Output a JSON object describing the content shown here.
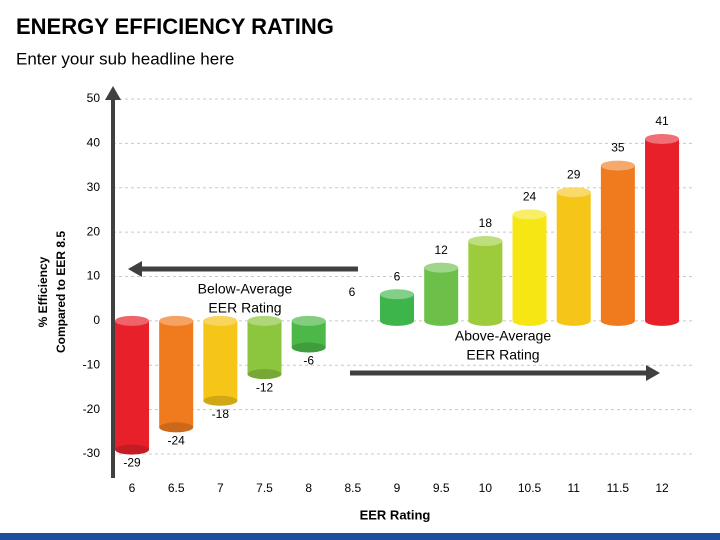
{
  "chart_data": {
    "type": "bar",
    "title": "ENERGY EFFICIENCY RATING",
    "subtitle": "Enter your sub headline here",
    "y_label": [
      "% Efficiency",
      "Compared to EER 8.5"
    ],
    "x_label": "EER Rating",
    "categories": [
      "6",
      "6.5",
      "7",
      "7.5",
      "8",
      "8.5",
      "9",
      "9.5",
      "10",
      "10.5",
      "11",
      "11.5",
      "12"
    ],
    "values": [
      -29,
      -24,
      -18,
      -12,
      -6,
      null,
      6,
      12,
      18,
      24,
      29,
      35,
      41
    ],
    "colors": [
      "#e8202a",
      "#f07a1e",
      "#f5c518",
      "#8cc63f",
      "#4cb848",
      null,
      "#3db54a",
      "#6cc04a",
      "#9ccc3c",
      "#f5e614",
      "#f5c518",
      "#f07a1e",
      "#e8202a"
    ],
    "ylim": [
      -30,
      50
    ],
    "yticks": [
      -30,
      -20,
      -10,
      0,
      10,
      20,
      30,
      40,
      50
    ],
    "grid": true,
    "annotations": [
      {
        "lines": [
          "Below-Average",
          "EER Rating"
        ]
      },
      {
        "lines": [
          "Above-Average",
          "EER Rating"
        ]
      },
      {
        "lines": [
          "6"
        ]
      }
    ]
  }
}
